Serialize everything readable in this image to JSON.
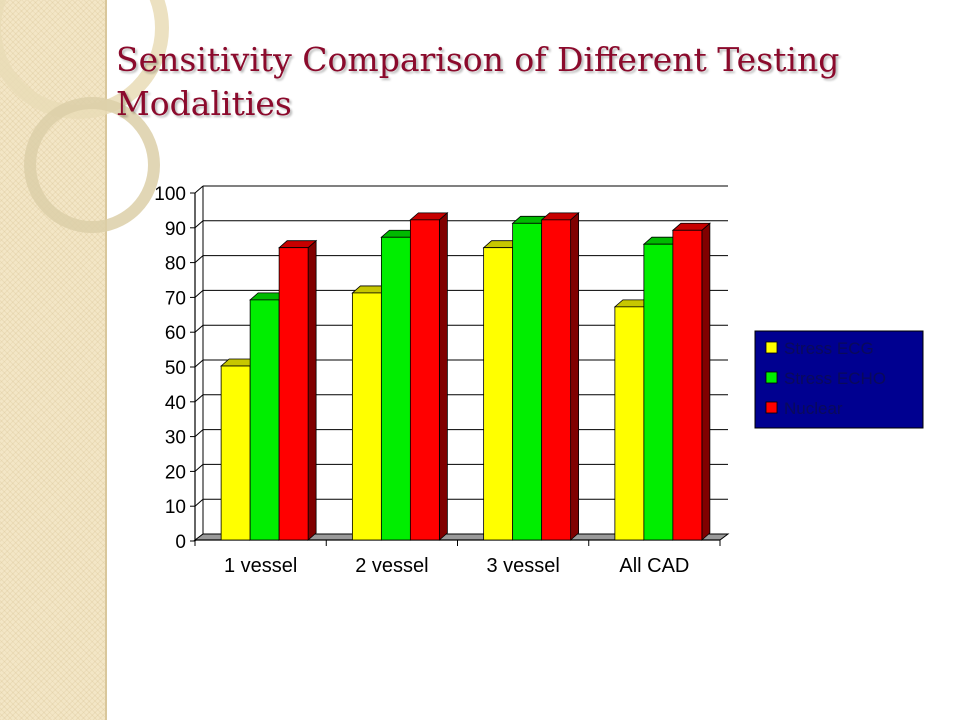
{
  "slide": {
    "title": "Sensitivity Comparison of Different Testing Modalities"
  },
  "chart_data": {
    "type": "bar",
    "title": "",
    "xlabel": "",
    "ylabel": "",
    "categories": [
      "1 vessel",
      "2 vessel",
      "3 vessel",
      "All CAD"
    ],
    "series": [
      {
        "name": "Stress ECG",
        "values": [
          50,
          71,
          84,
          67
        ],
        "color": "#ffff00"
      },
      {
        "name": "Stress ECHO",
        "values": [
          69,
          87,
          91,
          85
        ],
        "color": "#00ee00"
      },
      {
        "name": "Nuclear",
        "values": [
          84,
          92,
          92,
          89
        ],
        "color": "#ff0000"
      }
    ],
    "ylim": [
      0,
      100
    ],
    "yticks": [
      0,
      10,
      20,
      30,
      40,
      50,
      60,
      70,
      80,
      90,
      100
    ],
    "grid": true,
    "legend_position": "right",
    "legend_background": "#000090",
    "style": "3d-bars"
  }
}
